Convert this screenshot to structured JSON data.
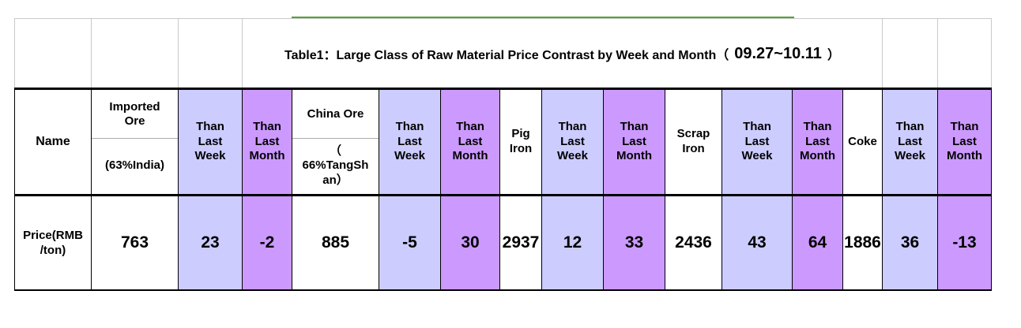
{
  "title": {
    "prefix": "Table1：Large Class of Raw Material Price Contrast by Week and Month（",
    "date": "09.27~10.11",
    "suffix": "）"
  },
  "colors": {
    "than_last_week_bg": "#CCCCFF",
    "than_last_month_bg": "#CC99FF",
    "green_divider_line": "#55A334",
    "grid_light": "#C9C9C9",
    "grid_dark": "#000000"
  },
  "header": {
    "name": "Name",
    "than_last_week": "Than\nLast\nWeek",
    "than_last_month": "Than\nLast\nMonth",
    "imported_ore_top": "Imported Ore",
    "imported_ore_bottom": "(63%India)",
    "china_ore_top": "China Ore",
    "china_ore_bottom": "（\n66%TangSh\nan）",
    "pig_iron": "Pig Iron",
    "scrap_iron": "Scrap Iron",
    "coke": "Coke"
  },
  "data_row": {
    "label": "Price(RMB\n/ton)",
    "values": [
      "763",
      "23",
      "-2",
      "885",
      "-5",
      "30",
      "2937",
      "12",
      "33",
      "2436",
      "43",
      "64",
      "1886",
      "36",
      "-13"
    ]
  }
}
